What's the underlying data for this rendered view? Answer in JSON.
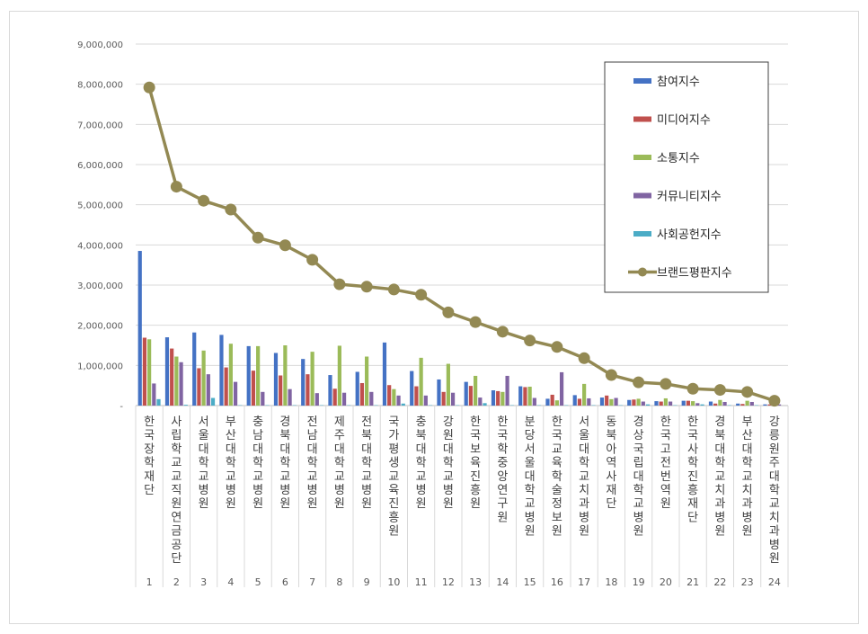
{
  "chart_data": {
    "type": "bar",
    "title": "",
    "xlabel": "",
    "ylabel": "",
    "ylim": [
      0,
      9000000
    ],
    "yticks": [
      0,
      1000000,
      2000000,
      3000000,
      4000000,
      5000000,
      6000000,
      7000000,
      8000000,
      9000000
    ],
    "ytick_labels": [
      "-",
      "1,000,000",
      "2,000,000",
      "3,000,000",
      "4,000,000",
      "5,000,000",
      "6,000,000",
      "7,000,000",
      "8,000,000",
      "9,000,000"
    ],
    "grid": true,
    "legend_position": "top-right",
    "categories": [
      "한국장학재단",
      "사립학교교직원연금공단",
      "서울대학교병원",
      "부산대학교병원",
      "충남대학교병원",
      "경북대학교병원",
      "전남대학교병원",
      "제주대학교병원",
      "전북대학교병원",
      "국가평생교육진흥원",
      "충북대학교병원",
      "강원대학교병원",
      "한국보육진흥원",
      "한국학중앙연구원",
      "분당서울대학교병원",
      "한국교육학술정보원",
      "서울대학교치과병원",
      "동북아역사재단",
      "경상국립대학교병원",
      "한국고전번역원",
      "한국사학진흥재단",
      "경북대학교치과병원",
      "부산대학교치과병원",
      "강릉원주대학교치과병원"
    ],
    "ranks": [
      "1",
      "2",
      "3",
      "4",
      "5",
      "6",
      "7",
      "8",
      "9",
      "10",
      "11",
      "12",
      "13",
      "14",
      "15",
      "16",
      "17",
      "18",
      "19",
      "20",
      "21",
      "22",
      "23",
      "24"
    ],
    "series": [
      {
        "name": "참여지수",
        "type": "bar",
        "color": "#4472c4",
        "values": [
          3850000,
          1700000,
          1820000,
          1760000,
          1480000,
          1310000,
          1160000,
          760000,
          840000,
          1570000,
          860000,
          650000,
          590000,
          380000,
          480000,
          170000,
          260000,
          200000,
          140000,
          110000,
          120000,
          100000,
          50000,
          30000
        ]
      },
      {
        "name": "미디어지수",
        "type": "bar",
        "color": "#c0504d",
        "values": [
          1690000,
          1420000,
          930000,
          950000,
          870000,
          750000,
          780000,
          420000,
          560000,
          510000,
          480000,
          340000,
          490000,
          360000,
          460000,
          270000,
          170000,
          250000,
          150000,
          100000,
          120000,
          50000,
          40000,
          30000
        ]
      },
      {
        "name": "소통지수",
        "type": "bar",
        "color": "#9bbb59",
        "values": [
          1650000,
          1220000,
          1370000,
          1540000,
          1480000,
          1500000,
          1340000,
          1490000,
          1220000,
          410000,
          1190000,
          1040000,
          740000,
          340000,
          470000,
          130000,
          540000,
          160000,
          170000,
          180000,
          110000,
          140000,
          120000,
          50000
        ]
      },
      {
        "name": "커뮤니티지수",
        "type": "bar",
        "color": "#8064a2",
        "values": [
          550000,
          1080000,
          780000,
          590000,
          340000,
          410000,
          310000,
          320000,
          340000,
          250000,
          250000,
          320000,
          200000,
          740000,
          190000,
          830000,
          180000,
          190000,
          100000,
          100000,
          60000,
          90000,
          90000,
          30000
        ]
      },
      {
        "name": "사회공헌지수",
        "type": "bar",
        "color": "#4bacc6",
        "values": [
          160000,
          20000,
          190000,
          10000,
          10000,
          10000,
          10000,
          10000,
          10000,
          50000,
          10000,
          10000,
          60000,
          10000,
          10000,
          10000,
          10000,
          10000,
          30000,
          10000,
          30000,
          10000,
          10000,
          0
        ]
      },
      {
        "name": "브랜드평판지수",
        "type": "line",
        "color": "#938953",
        "values": [
          7920000,
          5450000,
          5100000,
          4880000,
          4180000,
          3990000,
          3630000,
          3020000,
          2960000,
          2890000,
          2760000,
          2320000,
          2080000,
          1840000,
          1620000,
          1460000,
          1180000,
          760000,
          580000,
          540000,
          420000,
          390000,
          340000,
          120000
        ]
      }
    ]
  }
}
